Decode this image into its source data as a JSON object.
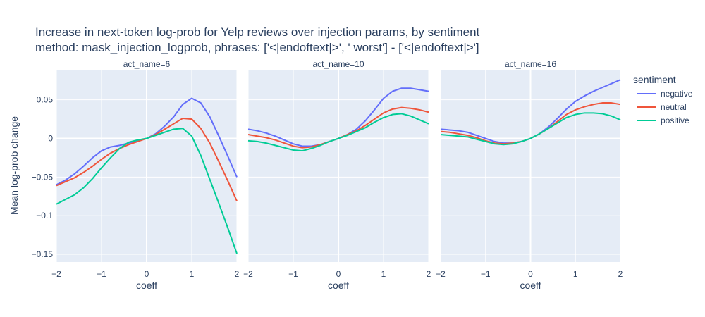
{
  "chart_data": {
    "type": "line",
    "title_line1": "Increase in next-token log-prob for Yelp reviews over injection params, by sentiment",
    "title_line2": "method: mask_injection_logprob, phrases: ['<|endoftext|>', ' worst'] - ['<|endoftext|>']",
    "ylabel": "Mean log-prob change",
    "xlabel": "coeff",
    "xlim": [
      -2,
      2
    ],
    "ylim": [
      -0.16,
      0.088
    ],
    "x_ticks": [
      -2,
      -1,
      0,
      1,
      2
    ],
    "x_tick_labels": [
      "−2",
      "−1",
      "0",
      "1",
      "2"
    ],
    "y_ticks": [
      -0.15,
      -0.1,
      -0.05,
      0,
      0.05
    ],
    "y_tick_labels": [
      "−0.15",
      "−0.1",
      "−0.05",
      "0",
      "0.05"
    ],
    "legend": {
      "title": "sentiment",
      "placement": "right",
      "entries": [
        "negative",
        "neutral",
        "positive"
      ]
    },
    "colors": {
      "negative": "#636efa",
      "neutral": "#ef553b",
      "positive": "#00cc96"
    },
    "x": [
      -2,
      -1.8,
      -1.6,
      -1.4,
      -1.2,
      -1,
      -0.8,
      -0.6,
      -0.4,
      -0.2,
      0,
      0.2,
      0.4,
      0.6,
      0.8,
      1,
      1.2,
      1.4,
      1.6,
      1.8,
      2
    ],
    "panels": [
      {
        "title": "act_name=6",
        "series": [
          {
            "name": "negative",
            "values": [
              -0.06,
              -0.054,
              -0.046,
              -0.036,
              -0.025,
              -0.016,
              -0.011,
              -0.009,
              -0.006,
              -0.003,
              0.0,
              0.006,
              0.016,
              0.028,
              0.044,
              0.052,
              0.046,
              0.028,
              0.003,
              -0.023,
              -0.05
            ]
          },
          {
            "name": "neutral",
            "values": [
              -0.061,
              -0.056,
              -0.051,
              -0.044,
              -0.036,
              -0.027,
              -0.019,
              -0.013,
              -0.008,
              -0.004,
              0.0,
              0.005,
              0.012,
              0.019,
              0.026,
              0.025,
              0.013,
              -0.006,
              -0.03,
              -0.055,
              -0.081
            ]
          },
          {
            "name": "positive",
            "values": [
              -0.085,
              -0.079,
              -0.073,
              -0.064,
              -0.052,
              -0.038,
              -0.025,
              -0.013,
              -0.005,
              -0.002,
              0.0,
              0.004,
              0.008,
              0.012,
              0.013,
              0.003,
              -0.022,
              -0.053,
              -0.084,
              -0.116,
              -0.149
            ]
          }
        ]
      },
      {
        "title": "act_name=10",
        "series": [
          {
            "name": "negative",
            "values": [
              0.012,
              0.01,
              0.007,
              0.003,
              -0.002,
              -0.007,
              -0.01,
              -0.01,
              -0.008,
              -0.004,
              0.0,
              0.005,
              0.012,
              0.023,
              0.037,
              0.052,
              0.061,
              0.065,
              0.065,
              0.063,
              0.061
            ]
          },
          {
            "name": "neutral",
            "values": [
              0.005,
              0.003,
              0.001,
              -0.002,
              -0.006,
              -0.01,
              -0.012,
              -0.011,
              -0.008,
              -0.004,
              0.0,
              0.005,
              0.01,
              0.017,
              0.025,
              0.033,
              0.038,
              0.04,
              0.039,
              0.037,
              0.034
            ]
          },
          {
            "name": "positive",
            "values": [
              -0.003,
              -0.004,
              -0.006,
              -0.009,
              -0.012,
              -0.015,
              -0.016,
              -0.013,
              -0.009,
              -0.004,
              0.0,
              0.004,
              0.009,
              0.014,
              0.021,
              0.027,
              0.031,
              0.032,
              0.029,
              0.024,
              0.019
            ]
          }
        ]
      },
      {
        "title": "act_name=16",
        "series": [
          {
            "name": "negative",
            "values": [
              0.012,
              0.011,
              0.01,
              0.008,
              0.004,
              0.0,
              -0.004,
              -0.006,
              -0.006,
              -0.004,
              0.0,
              0.006,
              0.015,
              0.026,
              0.038,
              0.048,
              0.055,
              0.061,
              0.066,
              0.071,
              0.076
            ]
          },
          {
            "name": "neutral",
            "values": [
              0.009,
              0.008,
              0.006,
              0.004,
              0.001,
              -0.003,
              -0.006,
              -0.007,
              -0.006,
              -0.004,
              0.0,
              0.006,
              0.013,
              0.022,
              0.031,
              0.037,
              0.041,
              0.044,
              0.046,
              0.046,
              0.044
            ]
          },
          {
            "name": "positive",
            "values": [
              0.005,
              0.004,
              0.003,
              0.002,
              -0.001,
              -0.004,
              -0.007,
              -0.008,
              -0.007,
              -0.004,
              0.0,
              0.006,
              0.013,
              0.02,
              0.027,
              0.031,
              0.033,
              0.033,
              0.032,
              0.029,
              0.024
            ]
          }
        ]
      }
    ]
  }
}
